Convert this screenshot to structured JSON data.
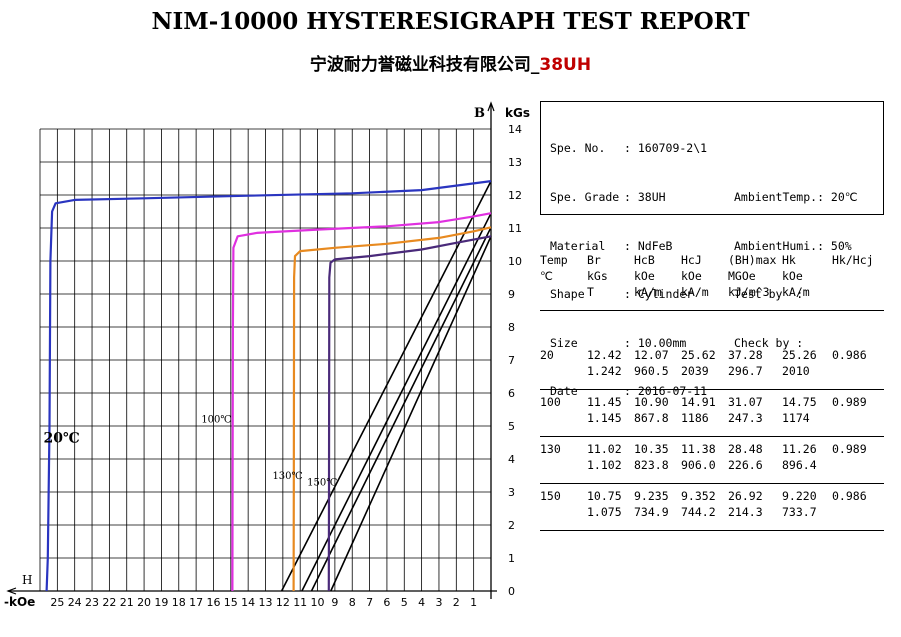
{
  "header": {
    "title": "NIM-10000 HYSTERESIGRAPH TEST REPORT",
    "company": "宁波耐力誉磁业科技有限公司_",
    "grade": "38UH"
  },
  "info": {
    "spe_no_label": "Spe. No.",
    "spe_no_value": ": 160709-2\\1",
    "spe_grade_label": "Spe. Grade",
    "spe_grade_value": ": 38UH",
    "ambient_temp": "AmbientTemp.: 20℃",
    "material_label": "Material",
    "material_value": ": NdFeB",
    "ambient_humi": "AmbientHumi.: 50%",
    "shape_label": "Shape",
    "shape_value": ": Cylinder",
    "test_by": "Test by  :",
    "size_label": "Size",
    "size_value": ": 10.00mm",
    "check_by": "Check by :",
    "date_label": "Date",
    "date_value": ": 2016-07-11"
  },
  "table": {
    "headers": [
      [
        "Temp",
        "℃",
        ""
      ],
      [
        "Br",
        "kGs",
        "T"
      ],
      [
        "HcB",
        "kOe",
        "kA/m"
      ],
      [
        "HcJ",
        "kOe",
        "kA/m"
      ],
      [
        "(BH)max",
        "MGOe",
        "kJ/m^3"
      ],
      [
        "Hk",
        "kOe",
        "kA/m"
      ],
      [
        "Hk/Hcj",
        "",
        ""
      ]
    ],
    "rows": [
      [
        [
          "20",
          ""
        ],
        [
          "12.42",
          "1.242"
        ],
        [
          "12.07",
          "960.5"
        ],
        [
          "25.62",
          "2039"
        ],
        [
          "37.28",
          "296.7"
        ],
        [
          "25.26",
          "2010"
        ],
        [
          "0.986",
          ""
        ]
      ],
      [
        [
          "100",
          ""
        ],
        [
          "11.45",
          "1.145"
        ],
        [
          "10.90",
          "867.8"
        ],
        [
          "14.91",
          "1186"
        ],
        [
          "31.07",
          "247.3"
        ],
        [
          "14.75",
          "1174"
        ],
        [
          "0.989",
          ""
        ]
      ],
      [
        [
          "130",
          ""
        ],
        [
          "11.02",
          "1.102"
        ],
        [
          "10.35",
          "823.8"
        ],
        [
          "11.38",
          "906.0"
        ],
        [
          "28.48",
          "226.6"
        ],
        [
          "11.26",
          "896.4"
        ],
        [
          "0.989",
          ""
        ]
      ],
      [
        [
          "150",
          ""
        ],
        [
          "10.75",
          "1.075"
        ],
        [
          "9.235",
          "734.9"
        ],
        [
          "9.352",
          "744.2"
        ],
        [
          "26.92",
          "214.3"
        ],
        [
          "9.220",
          "733.7"
        ],
        [
          "0.986",
          ""
        ]
      ]
    ]
  },
  "chart_data": {
    "type": "line",
    "title": "",
    "x_label": "H -kOe",
    "y_label": "B kGs",
    "x_range": [
      26,
      0
    ],
    "y_range": [
      0,
      14
    ],
    "x_ticks": [
      "25",
      "24",
      "23",
      "22",
      "21",
      "20",
      "19",
      "18",
      "17",
      "16",
      "15",
      "14",
      "13",
      "12",
      "11",
      "10",
      "9",
      "8",
      "7",
      "6",
      "5",
      "4",
      "3",
      "2",
      "1"
    ],
    "y_ticks": [
      "1",
      "2",
      "3",
      "4",
      "5",
      "6",
      "7",
      "8",
      "9",
      "10",
      "11",
      "12",
      "13",
      "14"
    ],
    "y_axis_letter": "B",
    "y_axis_unit": "kGs",
    "x_axis_letter": "H",
    "x_axis_unit": "-kOe",
    "y_zero_label": "0",
    "grid": true,
    "series": [
      {
        "name": "20℃",
        "color": "#2a35c0",
        "points": [
          [
            25.62,
            0
          ],
          [
            25.55,
            1
          ],
          [
            25.45,
            5
          ],
          [
            25.4,
            10
          ],
          [
            25.3,
            11.5
          ],
          [
            25.1,
            11.75
          ],
          [
            24,
            11.85
          ],
          [
            20,
            11.9
          ],
          [
            14,
            11.98
          ],
          [
            8,
            12.05
          ],
          [
            4,
            12.15
          ],
          [
            1,
            12.35
          ],
          [
            0,
            12.42
          ]
        ]
      },
      {
        "name": "100℃",
        "color": "#e030e0",
        "points": [
          [
            14.91,
            0
          ],
          [
            14.9,
            2
          ],
          [
            14.88,
            8
          ],
          [
            14.85,
            10.4
          ],
          [
            14.6,
            10.75
          ],
          [
            13.5,
            10.85
          ],
          [
            10,
            10.95
          ],
          [
            6,
            11.05
          ],
          [
            3,
            11.18
          ],
          [
            1,
            11.35
          ],
          [
            0,
            11.45
          ]
        ]
      },
      {
        "name": "130℃",
        "color": "#e88a20",
        "points": [
          [
            11.38,
            0
          ],
          [
            11.37,
            3
          ],
          [
            11.35,
            9.5
          ],
          [
            11.3,
            10.15
          ],
          [
            11.0,
            10.3
          ],
          [
            9,
            10.4
          ],
          [
            6,
            10.52
          ],
          [
            3,
            10.7
          ],
          [
            1,
            10.9
          ],
          [
            0,
            11.02
          ]
        ]
      },
      {
        "name": "150℃",
        "color": "#4a2a7a",
        "points": [
          [
            9.352,
            0
          ],
          [
            9.34,
            3
          ],
          [
            9.32,
            9.5
          ],
          [
            9.25,
            9.95
          ],
          [
            9.0,
            10.05
          ],
          [
            7,
            10.15
          ],
          [
            4,
            10.35
          ],
          [
            2,
            10.55
          ],
          [
            0,
            10.75
          ]
        ]
      }
    ],
    "load_lines": [
      {
        "color": "#000000",
        "points": [
          [
            12.07,
            0
          ],
          [
            0,
            12.42
          ]
        ]
      },
      {
        "color": "#000000",
        "points": [
          [
            10.9,
            0
          ],
          [
            0,
            11.45
          ]
        ]
      },
      {
        "color": "#000000",
        "points": [
          [
            10.35,
            0
          ],
          [
            0,
            11.02
          ]
        ]
      },
      {
        "color": "#000000",
        "points": [
          [
            9.235,
            0
          ],
          [
            0,
            10.75
          ]
        ]
      }
    ],
    "annotations": [
      {
        "text": "20℃",
        "x": 25.8,
        "y": 4.5,
        "size": "large"
      },
      {
        "text": "100℃",
        "x": 16.7,
        "y": 5.1,
        "size": "small"
      },
      {
        "text": "130℃",
        "x": 12.6,
        "y": 3.4,
        "size": "small"
      },
      {
        "text": "150℃",
        "x": 10.6,
        "y": 3.2,
        "size": "small"
      }
    ]
  }
}
